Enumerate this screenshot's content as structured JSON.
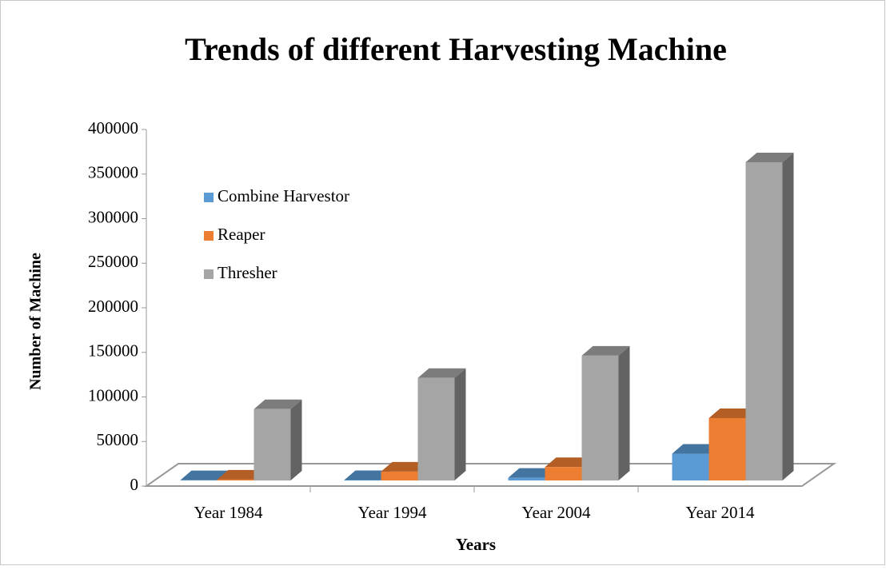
{
  "chart_data": {
    "type": "bar3d",
    "title": "Trends of different Harvesting Machine",
    "x_label": "Years",
    "y_label": "Number of Machine",
    "categories": [
      "Year 1984",
      "Year 1994",
      "Year 2004",
      "Year 2014"
    ],
    "series": [
      {
        "name": "Combine Harvestor",
        "color": "#5b9bd5",
        "values": [
          300,
          500,
          3000,
          30000
        ]
      },
      {
        "name": "Reaper",
        "color": "#ed7d31",
        "values": [
          1000,
          10000,
          15000,
          70000
        ]
      },
      {
        "name": "Thresher",
        "color": "#a5a5a5",
        "values": [
          80000,
          115000,
          140000,
          357000
        ]
      }
    ],
    "ylim": [
      0,
      400000
    ],
    "yticks": [
      0,
      50000,
      100000,
      150000,
      200000,
      250000,
      300000,
      350000,
      400000
    ],
    "legend": "upper-left"
  }
}
